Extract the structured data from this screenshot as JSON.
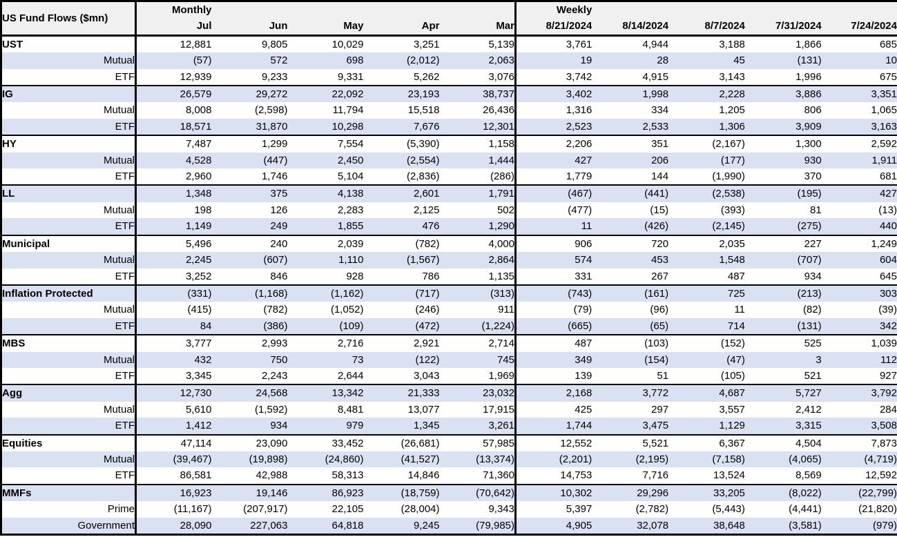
{
  "colors": {
    "stripe": "#D9E1F2",
    "header_bg": "#F0F0F0",
    "border": "#000000",
    "text": "#000000",
    "background": "#FFFFFF"
  },
  "chart_data": {
    "type": "table",
    "title": "US Fund Flows ($mn)",
    "column_groups": [
      {
        "label": "Monthly",
        "columns": [
          "Jul",
          "Jun",
          "May",
          "Apr",
          "Mar"
        ]
      },
      {
        "label": "Weekly",
        "columns": [
          "8/21/2024",
          "8/14/2024",
          "8/7/2024",
          "7/31/2024",
          "7/24/2024"
        ]
      }
    ],
    "sections": [
      {
        "name": "UST",
        "rows": [
          {
            "label": "UST",
            "monthly": [
              "12,881",
              "9,805",
              "10,029",
              "3,251",
              "5,139"
            ],
            "weekly": [
              "3,761",
              "4,944",
              "3,188",
              "1,866",
              "685"
            ]
          },
          {
            "label": "Mutual",
            "monthly": [
              "(57)",
              "572",
              "698",
              "(2,012)",
              "2,063"
            ],
            "weekly": [
              "19",
              "28",
              "45",
              "(131)",
              "10"
            ]
          },
          {
            "label": "ETF",
            "monthly": [
              "12,939",
              "9,233",
              "9,331",
              "5,262",
              "3,076"
            ],
            "weekly": [
              "3,742",
              "4,915",
              "3,143",
              "1,996",
              "675"
            ]
          }
        ]
      },
      {
        "name": "IG",
        "rows": [
          {
            "label": "IG",
            "monthly": [
              "26,579",
              "29,272",
              "22,092",
              "23,193",
              "38,737"
            ],
            "weekly": [
              "3,402",
              "1,998",
              "2,228",
              "3,886",
              "3,351"
            ]
          },
          {
            "label": "Mutual",
            "monthly": [
              "8,008",
              "(2,598)",
              "11,794",
              "15,518",
              "26,436"
            ],
            "weekly": [
              "1,316",
              "334",
              "1,205",
              "806",
              "1,065"
            ]
          },
          {
            "label": "ETF",
            "monthly": [
              "18,571",
              "31,870",
              "10,298",
              "7,676",
              "12,301"
            ],
            "weekly": [
              "2,523",
              "2,533",
              "1,306",
              "3,909",
              "3,163"
            ]
          }
        ]
      },
      {
        "name": "HY",
        "rows": [
          {
            "label": "HY",
            "monthly": [
              "7,487",
              "1,299",
              "7,554",
              "(5,390)",
              "1,158"
            ],
            "weekly": [
              "2,206",
              "351",
              "(2,167)",
              "1,300",
              "2,592"
            ]
          },
          {
            "label": "Mutual",
            "monthly": [
              "4,528",
              "(447)",
              "2,450",
              "(2,554)",
              "1,444"
            ],
            "weekly": [
              "427",
              "206",
              "(177)",
              "930",
              "1,911"
            ]
          },
          {
            "label": "ETF",
            "monthly": [
              "2,960",
              "1,746",
              "5,104",
              "(2,836)",
              "(286)"
            ],
            "weekly": [
              "1,779",
              "144",
              "(1,990)",
              "370",
              "681"
            ]
          }
        ]
      },
      {
        "name": "LL",
        "rows": [
          {
            "label": "LL",
            "monthly": [
              "1,348",
              "375",
              "4,138",
              "2,601",
              "1,791"
            ],
            "weekly": [
              "(467)",
              "(441)",
              "(2,538)",
              "(195)",
              "427"
            ]
          },
          {
            "label": "Mutual",
            "monthly": [
              "198",
              "126",
              "2,283",
              "2,125",
              "502"
            ],
            "weekly": [
              "(477)",
              "(15)",
              "(393)",
              "81",
              "(13)"
            ]
          },
          {
            "label": "ETF",
            "monthly": [
              "1,149",
              "249",
              "1,855",
              "476",
              "1,290"
            ],
            "weekly": [
              "11",
              "(426)",
              "(2,145)",
              "(275)",
              "440"
            ]
          }
        ]
      },
      {
        "name": "Municipal",
        "rows": [
          {
            "label": "Municipal",
            "monthly": [
              "5,496",
              "240",
              "2,039",
              "(782)",
              "4,000"
            ],
            "weekly": [
              "906",
              "720",
              "2,035",
              "227",
              "1,249"
            ]
          },
          {
            "label": "Mutual",
            "monthly": [
              "2,245",
              "(607)",
              "1,110",
              "(1,567)",
              "2,864"
            ],
            "weekly": [
              "574",
              "453",
              "1,548",
              "(707)",
              "604"
            ]
          },
          {
            "label": "ETF",
            "monthly": [
              "3,252",
              "846",
              "928",
              "786",
              "1,135"
            ],
            "weekly": [
              "331",
              "267",
              "487",
              "934",
              "645"
            ]
          }
        ]
      },
      {
        "name": "Inflation Protected",
        "rows": [
          {
            "label": "Inflation Protected",
            "monthly": [
              "(331)",
              "(1,168)",
              "(1,162)",
              "(717)",
              "(313)"
            ],
            "weekly": [
              "(743)",
              "(161)",
              "725",
              "(213)",
              "303"
            ]
          },
          {
            "label": "Mutual",
            "monthly": [
              "(415)",
              "(782)",
              "(1,052)",
              "(246)",
              "911"
            ],
            "weekly": [
              "(79)",
              "(96)",
              "11",
              "(82)",
              "(39)"
            ]
          },
          {
            "label": "ETF",
            "monthly": [
              "84",
              "(386)",
              "(109)",
              "(472)",
              "(1,224)"
            ],
            "weekly": [
              "(665)",
              "(65)",
              "714",
              "(131)",
              "342"
            ]
          }
        ]
      },
      {
        "name": "MBS",
        "rows": [
          {
            "label": "MBS",
            "monthly": [
              "3,777",
              "2,993",
              "2,716",
              "2,921",
              "2,714"
            ],
            "weekly": [
              "487",
              "(103)",
              "(152)",
              "525",
              "1,039"
            ]
          },
          {
            "label": "Mutual",
            "monthly": [
              "432",
              "750",
              "73",
              "(122)",
              "745"
            ],
            "weekly": [
              "349",
              "(154)",
              "(47)",
              "3",
              "112"
            ]
          },
          {
            "label": "ETF",
            "monthly": [
              "3,345",
              "2,243",
              "2,644",
              "3,043",
              "1,969"
            ],
            "weekly": [
              "139",
              "51",
              "(105)",
              "521",
              "927"
            ]
          }
        ]
      },
      {
        "name": "Agg",
        "rows": [
          {
            "label": "Agg",
            "monthly": [
              "12,730",
              "24,568",
              "13,342",
              "21,333",
              "23,032"
            ],
            "weekly": [
              "2,168",
              "3,772",
              "4,687",
              "5,727",
              "3,792"
            ]
          },
          {
            "label": "Mutual",
            "monthly": [
              "5,610",
              "(1,592)",
              "8,481",
              "13,077",
              "17,915"
            ],
            "weekly": [
              "425",
              "297",
              "3,557",
              "2,412",
              "284"
            ]
          },
          {
            "label": "ETF",
            "monthly": [
              "1,412",
              "934",
              "979",
              "1,345",
              "3,261"
            ],
            "weekly": [
              "1,744",
              "3,475",
              "1,129",
              "3,315",
              "3,508"
            ]
          }
        ]
      },
      {
        "name": "Equities",
        "rows": [
          {
            "label": "Equities",
            "monthly": [
              "47,114",
              "23,090",
              "33,452",
              "(26,681)",
              "57,985"
            ],
            "weekly": [
              "12,552",
              "5,521",
              "6,367",
              "4,504",
              "7,873"
            ]
          },
          {
            "label": "Mutual",
            "monthly": [
              "(39,467)",
              "(19,898)",
              "(24,860)",
              "(41,527)",
              "(13,374)"
            ],
            "weekly": [
              "(2,201)",
              "(2,195)",
              "(7,158)",
              "(4,065)",
              "(4,719)"
            ]
          },
          {
            "label": "ETF",
            "monthly": [
              "86,581",
              "42,988",
              "58,313",
              "14,846",
              "71,360"
            ],
            "weekly": [
              "14,753",
              "7,716",
              "13,524",
              "8,569",
              "12,592"
            ]
          }
        ]
      },
      {
        "name": "MMFs",
        "rows": [
          {
            "label": "MMFs",
            "monthly": [
              "16,923",
              "19,146",
              "86,923",
              "(18,759)",
              "(70,642)"
            ],
            "weekly": [
              "10,302",
              "29,296",
              "33,205",
              "(8,022)",
              "(22,799)"
            ]
          },
          {
            "label": "Prime",
            "monthly": [
              "(11,167)",
              "(207,917)",
              "22,105",
              "(28,004)",
              "9,343"
            ],
            "weekly": [
              "5,397",
              "(2,782)",
              "(5,443)",
              "(4,441)",
              "(21,820)"
            ]
          },
          {
            "label": "Government",
            "monthly": [
              "28,090",
              "227,063",
              "64,818",
              "9,245",
              "(79,985)"
            ],
            "weekly": [
              "4,905",
              "32,078",
              "38,648",
              "(3,581)",
              "(979)"
            ]
          }
        ]
      }
    ]
  }
}
